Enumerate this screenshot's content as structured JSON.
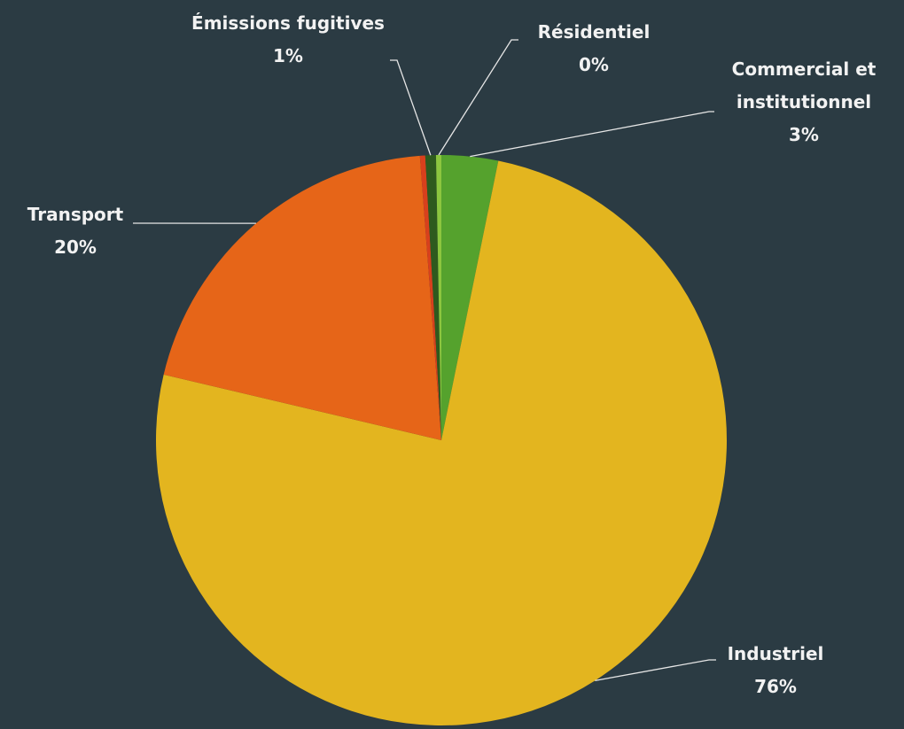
{
  "chart_data": {
    "type": "pie",
    "categories": [
      "Commercial et institutionnel",
      "Industriel",
      "Transport",
      null,
      "Émissions fugitives",
      "Résidentiel"
    ],
    "values": [
      3.2,
      75.5,
      20.1,
      0.3,
      0.6,
      0.3
    ],
    "value_labels": [
      "3%",
      "76%",
      "20%",
      null,
      "1%",
      "0%"
    ],
    "colors": [
      "#55a22d",
      "#e3b51f",
      "#e66518",
      "#d8401c",
      "#2e5a1e",
      "#8cc63f"
    ]
  }
}
